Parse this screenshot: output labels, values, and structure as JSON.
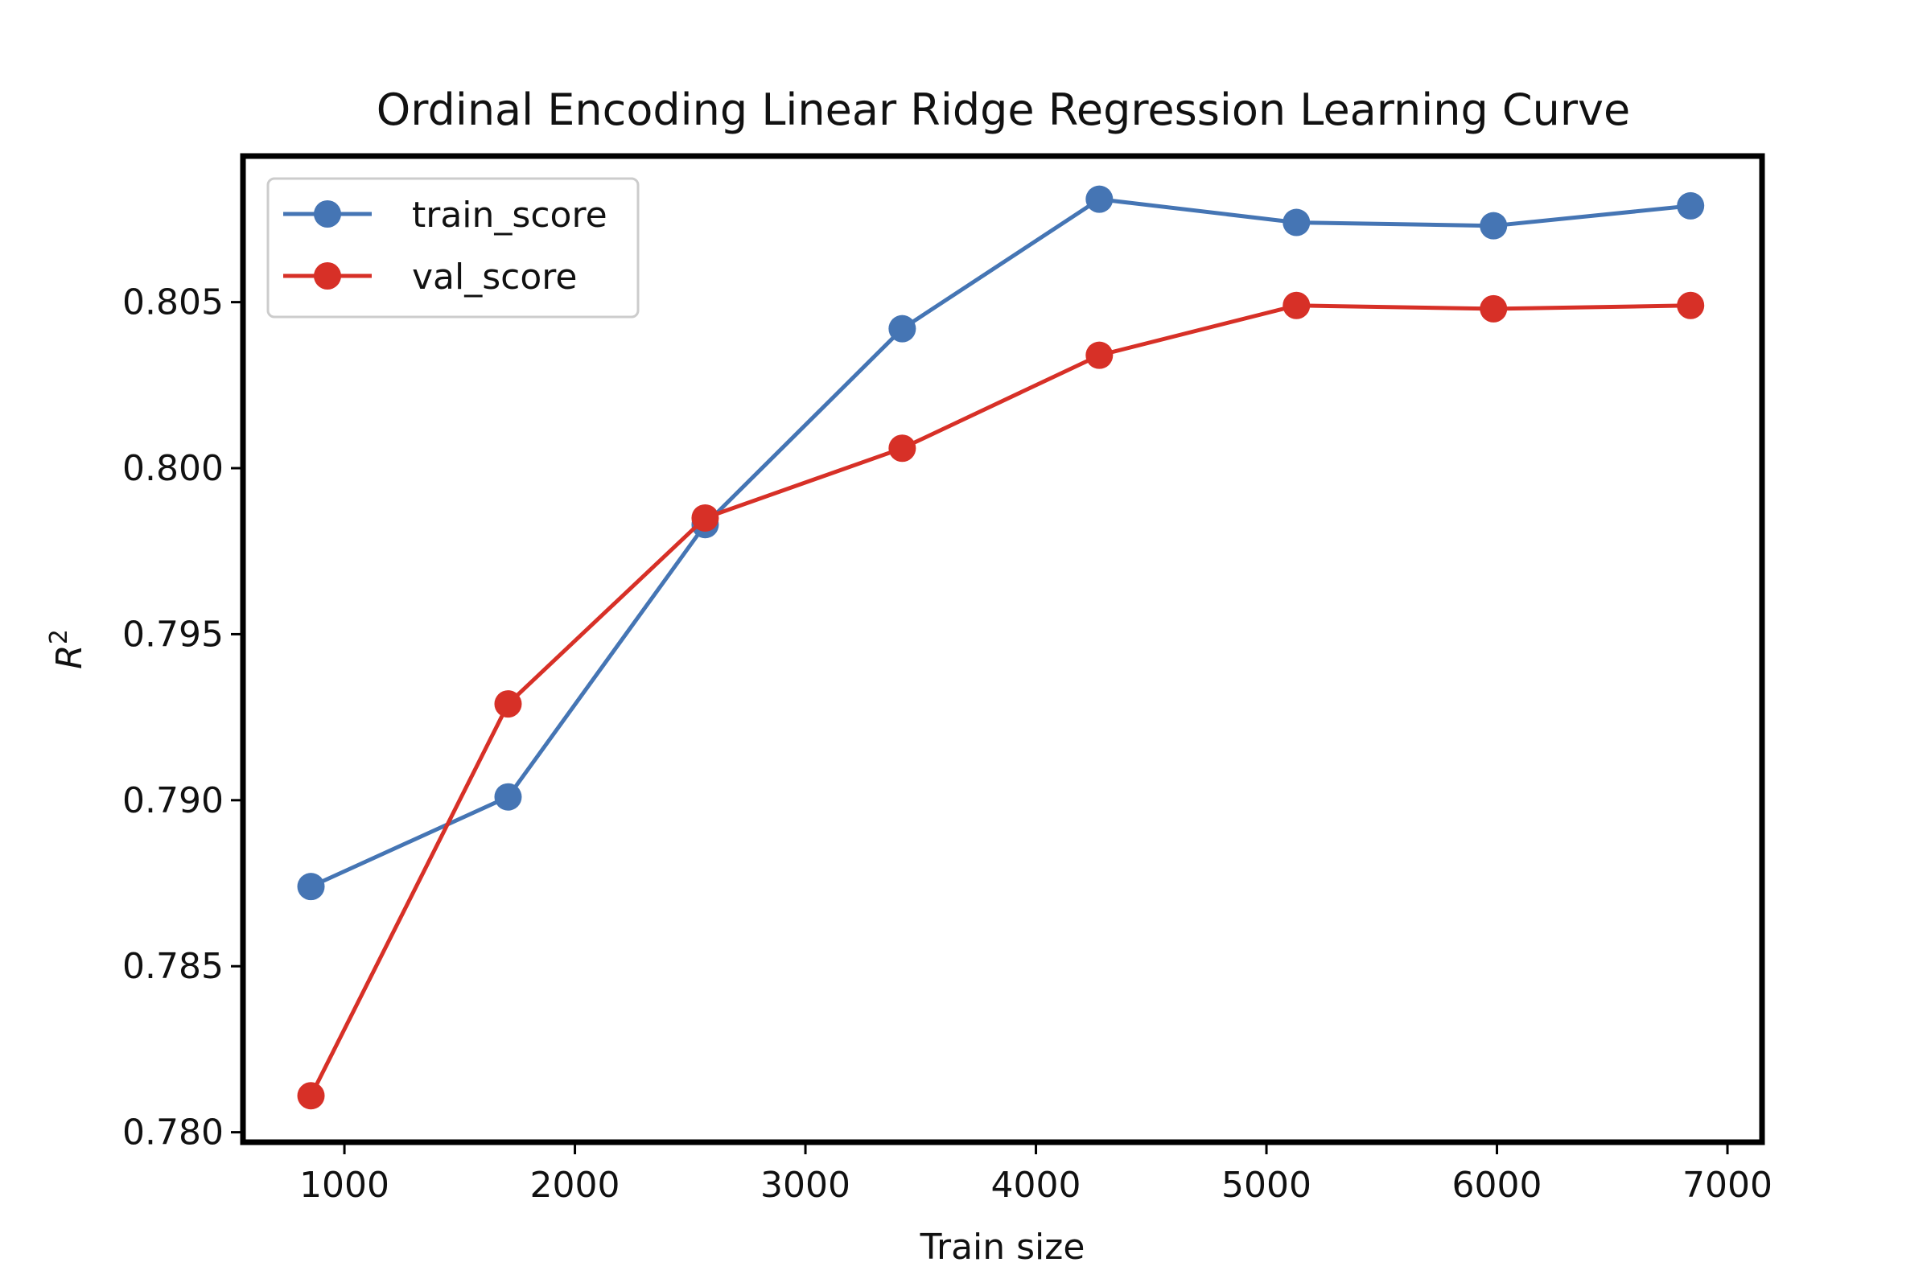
{
  "chart_data": {
    "type": "line",
    "title": "Ordinal Encoding Linear Ridge Regression Learning Curve",
    "xlabel": "Train size",
    "ylabel": "R",
    "ylabel_superscript": "2",
    "xlim": [
      560,
      7150
    ],
    "ylim": [
      0.7797,
      0.8094
    ],
    "xticks": [
      1000,
      2000,
      3000,
      4000,
      5000,
      6000,
      7000
    ],
    "xtick_labels": [
      "1000",
      "2000",
      "3000",
      "4000",
      "5000",
      "6000",
      "7000"
    ],
    "yticks": [
      0.78,
      0.785,
      0.79,
      0.795,
      0.8,
      0.805
    ],
    "ytick_labels": [
      "0.780",
      "0.785",
      "0.790",
      "0.795",
      "0.800",
      "0.805"
    ],
    "grid": false,
    "legend_position": "top-left",
    "x": [
      855,
      1710,
      2565,
      3420,
      4275,
      5130,
      5985,
      6840
    ],
    "series": [
      {
        "name": "train_score",
        "color": "#4575b4",
        "values": [
          0.7874,
          0.7901,
          0.7983,
          0.8042,
          0.8081,
          0.8074,
          0.8073,
          0.8079
        ]
      },
      {
        "name": "val_score",
        "color": "#d73027",
        "values": [
          0.7811,
          0.7929,
          0.7985,
          0.8006,
          0.8034,
          0.8049,
          0.8048,
          0.8049
        ]
      }
    ]
  }
}
